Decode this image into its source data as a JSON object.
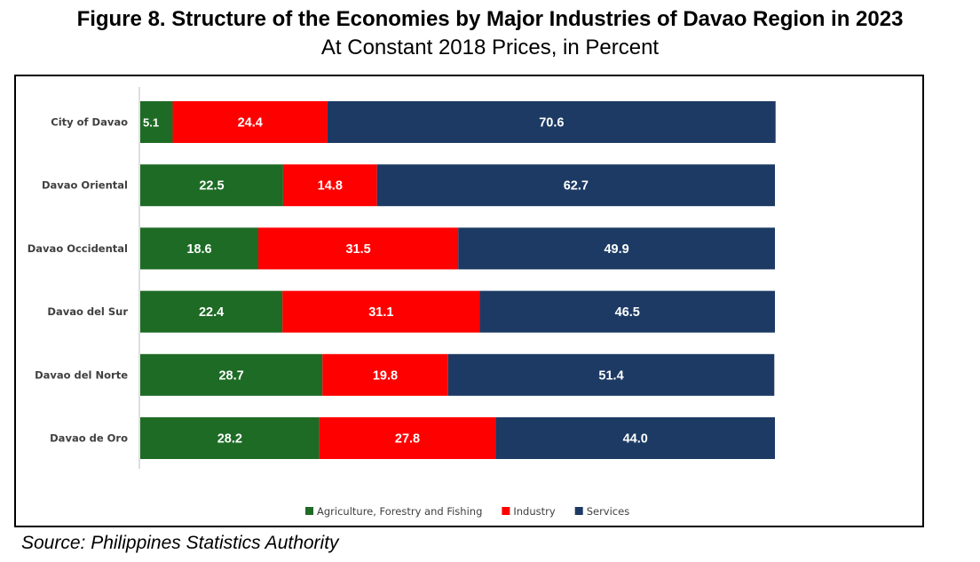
{
  "header": {
    "title": "Figure 8. Structure of the Economies by Major Industries of Davao Region in 2023",
    "subtitle": "At Constant 2018 Prices, in Percent"
  },
  "footer": {
    "source": "Source: Philippines Statistics Authority"
  },
  "chart_data": {
    "type": "bar",
    "orientation": "horizontal",
    "stacked": true,
    "title": "Figure 8. Structure of the Economies by Major Industries of Davao Region in 2023",
    "subtitle": "At Constant 2018 Prices, in Percent",
    "categories": [
      "City of Davao",
      "Davao Oriental",
      "Davao Occidental",
      "Davao del Sur",
      "Davao del Norte",
      "Davao de Oro"
    ],
    "series": [
      {
        "name": "Agriculture, Forestry and Fishing",
        "color": "#1e6b25",
        "values": [
          5.1,
          22.5,
          18.6,
          22.4,
          28.7,
          28.2
        ],
        "labels": [
          "5.1",
          "22.5",
          "18.6",
          "22.4",
          "28.7",
          "28.2"
        ]
      },
      {
        "name": "Industry",
        "color": "#ff0000",
        "values": [
          24.4,
          14.8,
          31.5,
          31.1,
          19.8,
          27.8
        ],
        "labels": [
          "24.4",
          "14.8",
          "31.5",
          "31.1",
          "19.8",
          "27.8"
        ]
      },
      {
        "name": "Services",
        "color": "#1c3a63",
        "values": [
          70.6,
          62.7,
          49.9,
          46.5,
          51.4,
          44.0
        ],
        "labels": [
          "70.6",
          "62.7",
          "49.9",
          "46.5",
          "51.4",
          "44.0"
        ]
      }
    ],
    "xlim": [
      0,
      100
    ],
    "xlabel": "",
    "ylabel": "",
    "grid": false,
    "data_labels": true,
    "legend": "bottom"
  }
}
